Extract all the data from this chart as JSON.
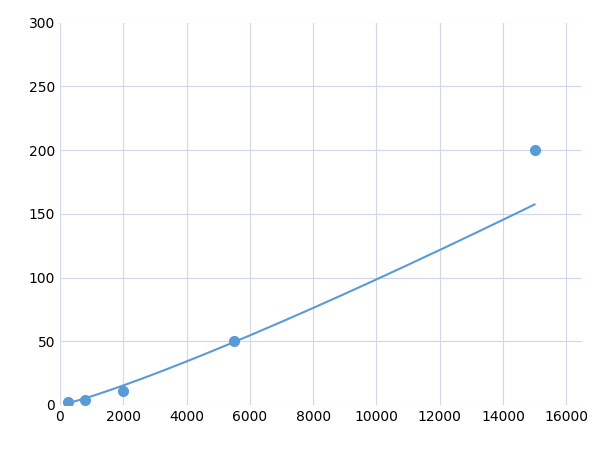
{
  "x": [
    250,
    800,
    2000,
    5500,
    15000
  ],
  "y": [
    2,
    4,
    11,
    50,
    200
  ],
  "line_color": "#5b9bd5",
  "marker_color": "#5b9bd5",
  "marker_size": 7,
  "line_width": 1.5,
  "xlim": [
    0,
    16500
  ],
  "ylim": [
    0,
    300
  ],
  "xticks": [
    0,
    2000,
    4000,
    6000,
    8000,
    10000,
    12000,
    14000,
    16000
  ],
  "yticks": [
    0,
    50,
    100,
    150,
    200,
    250,
    300
  ],
  "grid_color": "#d0d8e8",
  "background_color": "#ffffff",
  "figsize": [
    6.0,
    4.5
  ],
  "dpi": 100
}
